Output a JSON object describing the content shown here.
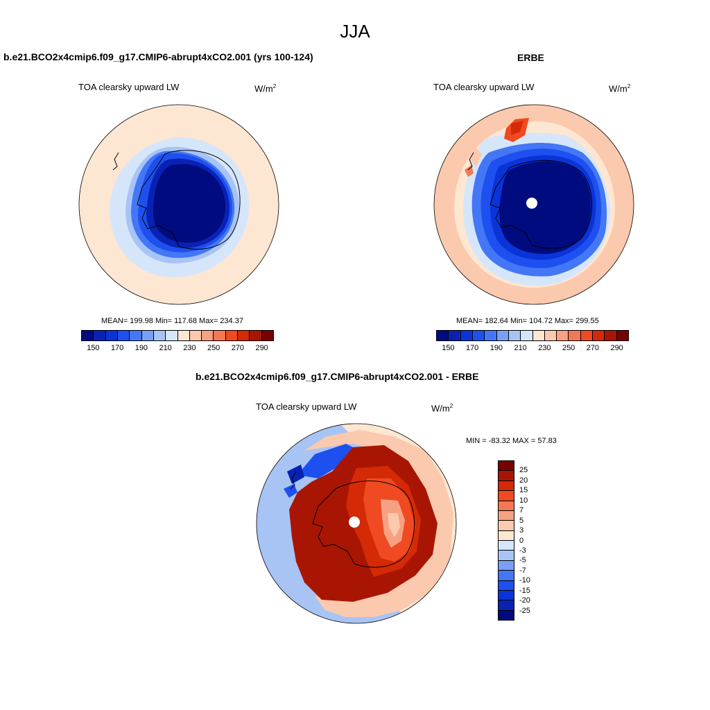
{
  "season": "JJA",
  "model_run": "b.e21.BCO2x4cmip6.f09_g17.CMIP6-abrupt4xCO2.001 (yrs 100-124)",
  "obs_name": "ERBE",
  "diff_title": "b.e21.BCO2x4cmip6.f09_g17.CMIP6-abrupt4xCO2.001 - ERBE",
  "variable": "TOA clearsky upward LW",
  "units": "W/m",
  "units_exp": "2",
  "panel_model": {
    "stats": "MEAN= 199.98  Min= 117.68  Max= 234.37",
    "mean": 199.98,
    "min": 117.68,
    "max": 234.37
  },
  "panel_obs": {
    "stats": "MEAN= 182.64  Min= 104.72  Max= 299.55",
    "mean": 182.64,
    "min": 104.72,
    "max": 299.55
  },
  "panel_diff": {
    "stats": "MIN = -83.32 MAX =  57.83",
    "min": -83.32,
    "max": 57.83
  },
  "abs_colorbar": {
    "colors": [
      "#000b80",
      "#0922b3",
      "#0a34d8",
      "#1e50f0",
      "#4477f5",
      "#78a0f5",
      "#a8c4f5",
      "#d6e6fa",
      "#fde6d2",
      "#fbc9ad",
      "#f6a181",
      "#f37853",
      "#ef4a21",
      "#d42a06",
      "#a81603",
      "#760301"
    ],
    "tick_labels": [
      "150",
      "170",
      "190",
      "210",
      "230",
      "250",
      "270",
      "290"
    ]
  },
  "diff_colorbar": {
    "colors": [
      "#760301",
      "#a81603",
      "#d42a06",
      "#ef4a21",
      "#f37853",
      "#f6a181",
      "#fbc9ad",
      "#fde6d2",
      "#d6e6fa",
      "#a8c4f5",
      "#78a0f5",
      "#4477f5",
      "#1e50f0",
      "#0a34d8",
      "#0922b3",
      "#000b80"
    ],
    "tick_labels": [
      "25",
      "20",
      "15",
      "10",
      "7",
      "5",
      "3",
      "0",
      "-3",
      "-5",
      "-7",
      "-10",
      "-15",
      "-20",
      "-25"
    ]
  }
}
